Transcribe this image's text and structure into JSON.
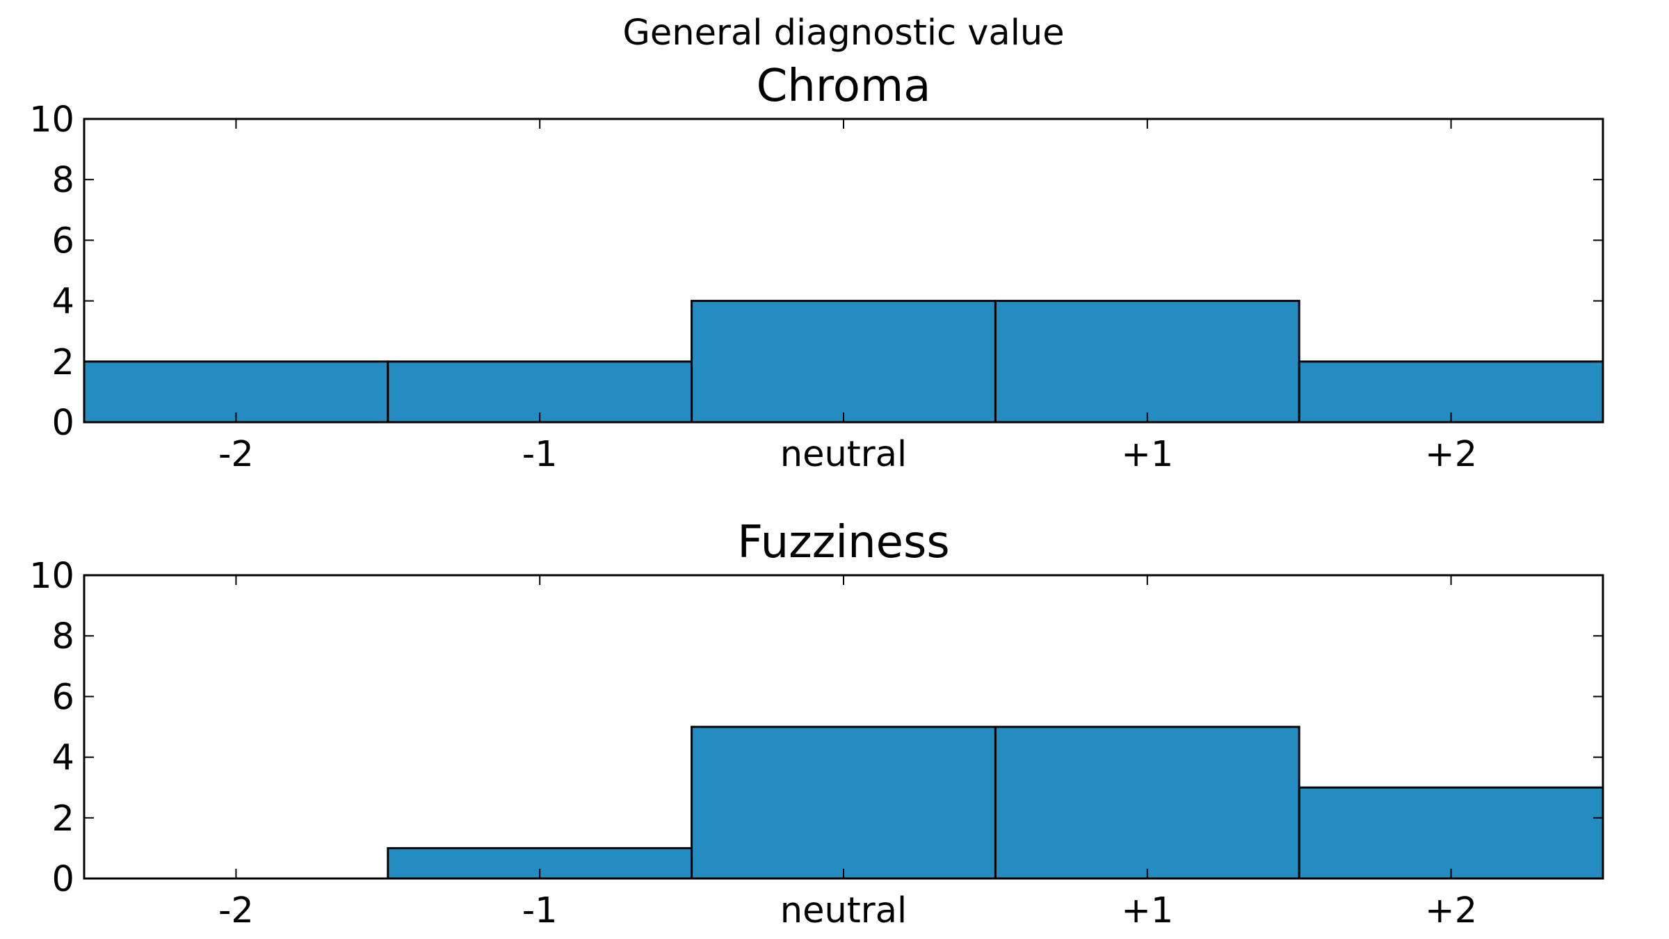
{
  "figure": {
    "suptitle": "General diagnostic value"
  },
  "colors": {
    "bar_fill": "#258cc2",
    "bar_edge": "#000000",
    "axes": "#000000",
    "background": "#ffffff"
  },
  "chart_data": [
    {
      "type": "bar",
      "title": "Chroma",
      "xlabel": "",
      "ylabel": "",
      "categories": [
        "-2",
        "-1",
        "neutral",
        "+1",
        "+2"
      ],
      "values": [
        2,
        2,
        4,
        4,
        2
      ],
      "ylim": [
        0,
        10
      ],
      "yticks": [
        "0",
        "2",
        "4",
        "6",
        "8",
        "10"
      ],
      "grid": false,
      "legend": "none"
    },
    {
      "type": "bar",
      "title": "Fuzziness",
      "xlabel": "",
      "ylabel": "",
      "categories": [
        "-2",
        "-1",
        "neutral",
        "+1",
        "+2"
      ],
      "values": [
        0,
        1,
        5,
        5,
        3
      ],
      "ylim": [
        0,
        10
      ],
      "yticks": [
        "0",
        "2",
        "4",
        "6",
        "8",
        "10"
      ],
      "grid": false,
      "legend": "none"
    }
  ]
}
